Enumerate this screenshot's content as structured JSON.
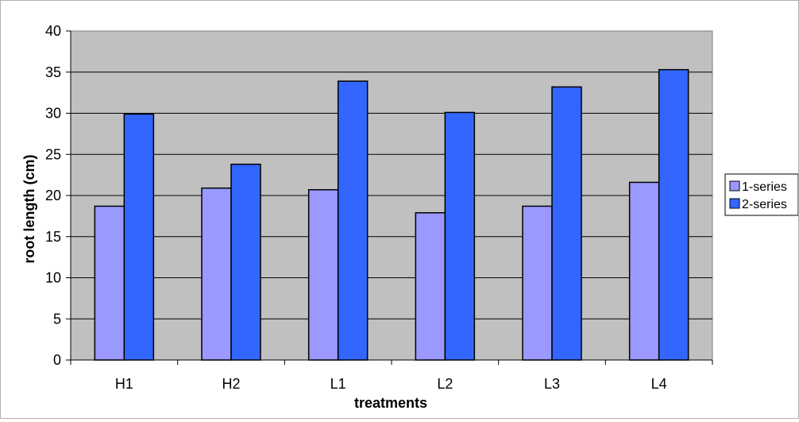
{
  "chart_data": {
    "type": "bar",
    "title": "",
    "xlabel": "treatments",
    "ylabel": "root length (cm)",
    "categories": [
      "H1",
      "H2",
      "L1",
      "L2",
      "L3",
      "L4"
    ],
    "series": [
      {
        "name": "1-series",
        "color": "#9999ff",
        "values": [
          18.7,
          20.9,
          20.7,
          17.9,
          18.7,
          21.6
        ]
      },
      {
        "name": "2-series",
        "color": "#3366ff",
        "values": [
          29.9,
          23.8,
          33.9,
          30.1,
          33.2,
          35.3
        ]
      }
    ],
    "ylim": [
      0,
      40
    ],
    "yticks": [
      0,
      5,
      10,
      15,
      20,
      25,
      30,
      35,
      40
    ],
    "grid": true,
    "plot_background": "#c0c0c0",
    "legend_position": "right"
  }
}
